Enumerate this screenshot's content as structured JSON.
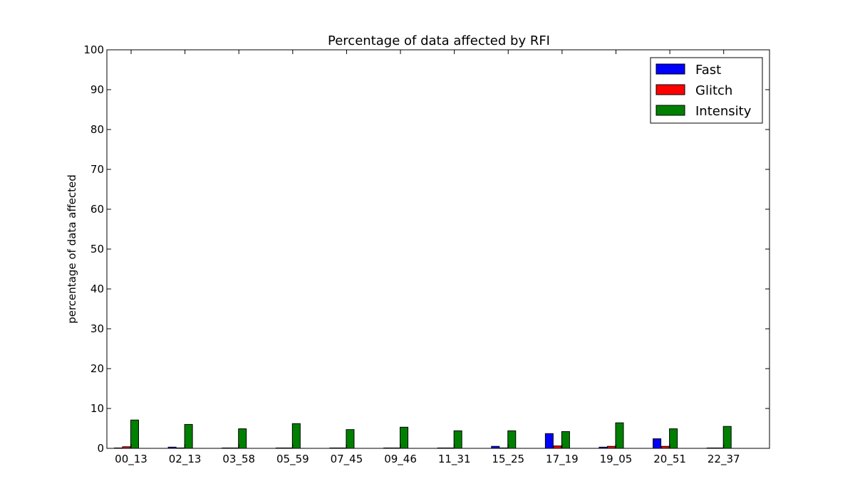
{
  "chart_data": {
    "type": "bar",
    "title": "Percentage of data affected by RFI",
    "xlabel": "",
    "ylabel": "percentage of data affected",
    "ylim": [
      0,
      100
    ],
    "yticks": [
      0,
      10,
      20,
      30,
      40,
      50,
      60,
      70,
      80,
      90,
      100
    ],
    "grid": false,
    "legend_position": "top-right",
    "categories": [
      "00_13",
      "02_13",
      "03_58",
      "05_59",
      "07_45",
      "09_46",
      "11_31",
      "15_25",
      "17_19",
      "19_05",
      "20_51",
      "22_37"
    ],
    "series": [
      {
        "name": "Fast",
        "color": "#0000ff",
        "values": [
          0.1,
          0.3,
          0.1,
          0.1,
          0.1,
          0.1,
          0.1,
          0.5,
          3.7,
          0.3,
          2.4,
          0.1
        ]
      },
      {
        "name": "Glitch",
        "color": "#ff0000",
        "values": [
          0.4,
          0.1,
          0.1,
          0.1,
          0.1,
          0.1,
          0.1,
          0.1,
          0.6,
          0.5,
          0.5,
          0.1
        ]
      },
      {
        "name": "Intensity",
        "color": "#008000",
        "values": [
          7.1,
          6.0,
          4.9,
          6.2,
          4.7,
          5.3,
          4.4,
          4.4,
          4.2,
          6.4,
          4.9,
          5.5
        ]
      }
    ]
  }
}
